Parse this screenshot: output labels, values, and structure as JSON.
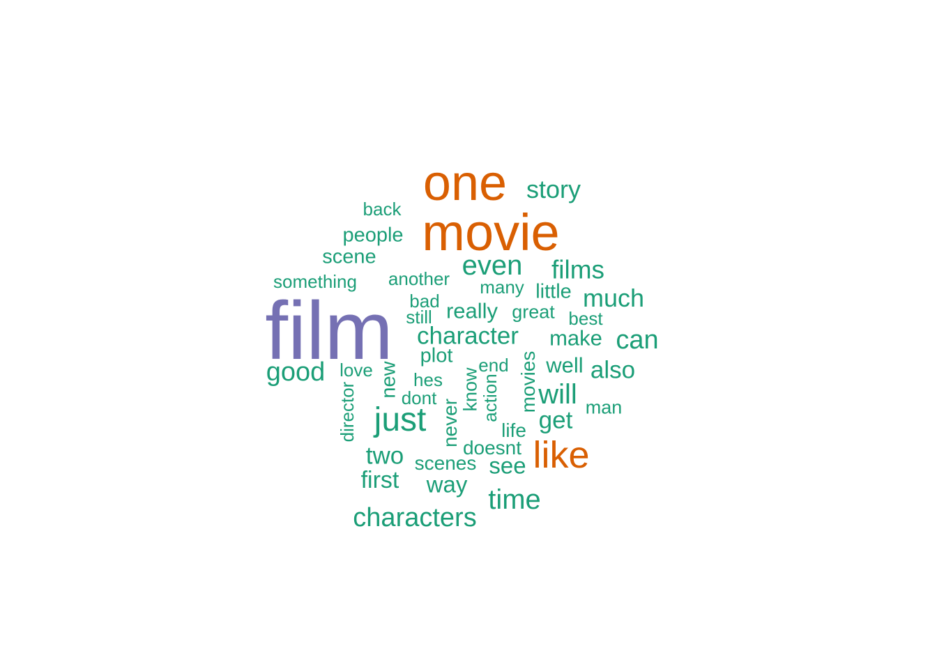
{
  "palette": {
    "top": "#7570b3",
    "high": "#d95f02",
    "normal": "#1b9e77"
  },
  "words": [
    {
      "text": "film",
      "tier": "top"
    },
    {
      "text": "one",
      "tier": "high"
    },
    {
      "text": "movie",
      "tier": "high"
    },
    {
      "text": "like",
      "tier": "high"
    },
    {
      "text": "story",
      "tier": "normal"
    },
    {
      "text": "back",
      "tier": "normal"
    },
    {
      "text": "people",
      "tier": "normal"
    },
    {
      "text": "scene",
      "tier": "normal"
    },
    {
      "text": "even",
      "tier": "normal"
    },
    {
      "text": "films",
      "tier": "normal"
    },
    {
      "text": "something",
      "tier": "normal"
    },
    {
      "text": "another",
      "tier": "normal"
    },
    {
      "text": "many",
      "tier": "normal"
    },
    {
      "text": "little",
      "tier": "normal"
    },
    {
      "text": "much",
      "tier": "normal"
    },
    {
      "text": "bad",
      "tier": "normal"
    },
    {
      "text": "really",
      "tier": "normal"
    },
    {
      "text": "great",
      "tier": "normal"
    },
    {
      "text": "still",
      "tier": "normal"
    },
    {
      "text": "best",
      "tier": "normal"
    },
    {
      "text": "character",
      "tier": "normal"
    },
    {
      "text": "make",
      "tier": "normal"
    },
    {
      "text": "can",
      "tier": "normal"
    },
    {
      "text": "plot",
      "tier": "normal"
    },
    {
      "text": "good",
      "tier": "normal"
    },
    {
      "text": "love",
      "tier": "normal"
    },
    {
      "text": "new",
      "tier": "normal"
    },
    {
      "text": "end",
      "tier": "normal"
    },
    {
      "text": "well",
      "tier": "normal"
    },
    {
      "text": "also",
      "tier": "normal"
    },
    {
      "text": "hes",
      "tier": "normal"
    },
    {
      "text": "know",
      "tier": "normal"
    },
    {
      "text": "movies",
      "tier": "normal"
    },
    {
      "text": "director",
      "tier": "normal"
    },
    {
      "text": "dont",
      "tier": "normal"
    },
    {
      "text": "action",
      "tier": "normal"
    },
    {
      "text": "will",
      "tier": "normal"
    },
    {
      "text": "man",
      "tier": "normal"
    },
    {
      "text": "just",
      "tier": "normal"
    },
    {
      "text": "never",
      "tier": "normal"
    },
    {
      "text": "get",
      "tier": "normal"
    },
    {
      "text": "life",
      "tier": "normal"
    },
    {
      "text": "doesnt",
      "tier": "normal"
    },
    {
      "text": "two",
      "tier": "normal"
    },
    {
      "text": "scenes",
      "tier": "normal"
    },
    {
      "text": "see",
      "tier": "normal"
    },
    {
      "text": "first",
      "tier": "normal"
    },
    {
      "text": "way",
      "tier": "normal"
    },
    {
      "text": "time",
      "tier": "normal"
    },
    {
      "text": "characters",
      "tier": "normal"
    }
  ]
}
